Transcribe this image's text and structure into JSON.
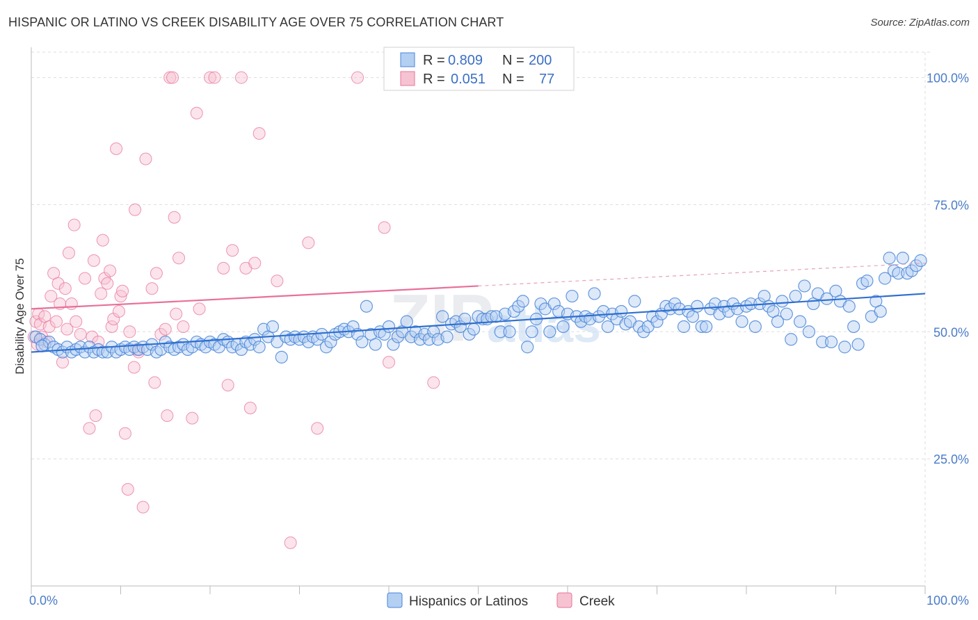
{
  "header": {
    "title": "HISPANIC OR LATINO VS CREEK DISABILITY AGE OVER 75 CORRELATION CHART",
    "source": "Source: ZipAtlas.com"
  },
  "legend_top": {
    "rows": [
      {
        "r_label": "R =",
        "r_value": "0.809",
        "n_label": "N =",
        "n_value": "200",
        "color": "#8fb7ea"
      },
      {
        "r_label": "R =",
        "r_value": "0.051",
        "n_label": "N =",
        "n_value": "77",
        "color": "#f2a9c0"
      }
    ]
  },
  "watermark": {
    "zip": "ZIP",
    "atlas": "atlas"
  },
  "chart_data": {
    "type": "scatter",
    "title": "HISPANIC OR LATINO VS CREEK DISABILITY AGE OVER 75 CORRELATION CHART",
    "xlabel": "",
    "ylabel": "Disability Age Over 75",
    "xlim": [
      0,
      100
    ],
    "ylim": [
      0,
      105
    ],
    "x_tick_labels": [
      "0.0%",
      "100.0%"
    ],
    "y_tick_labels": [
      "25.0%",
      "50.0%",
      "75.0%",
      "100.0%"
    ],
    "y_ticks": [
      25,
      50,
      75,
      100
    ],
    "grid": true,
    "legend_position": "top-center",
    "series": [
      {
        "name": "Hispanics or Latinos",
        "color": "#4a86d8",
        "fill": "#b3cff2",
        "trend": {
          "x": [
            0,
            100
          ],
          "y": [
            46,
            57.5
          ]
        },
        "points": [
          [
            0.5,
            49
          ],
          [
            1,
            48.5
          ],
          [
            1.5,
            47.5
          ],
          [
            2,
            48
          ],
          [
            2.5,
            47
          ],
          [
            3,
            46.5
          ],
          [
            3.5,
            46
          ],
          [
            4,
            47
          ],
          [
            4.5,
            46
          ],
          [
            5,
            46.5
          ],
          [
            5.5,
            47
          ],
          [
            6,
            46
          ],
          [
            6.5,
            47
          ],
          [
            7,
            46
          ],
          [
            7.5,
            46.5
          ],
          [
            8,
            46
          ],
          [
            8.5,
            46
          ],
          [
            9,
            47
          ],
          [
            9.5,
            46
          ],
          [
            10,
            46.5
          ],
          [
            10.5,
            47
          ],
          [
            11,
            46.5
          ],
          [
            11.5,
            47
          ],
          [
            12,
            46.5
          ],
          [
            12.5,
            47
          ],
          [
            13,
            46.5
          ],
          [
            13.5,
            47.5
          ],
          [
            14,
            46
          ],
          [
            14.5,
            46.5
          ],
          [
            15,
            48
          ],
          [
            15.5,
            47
          ],
          [
            16,
            46.5
          ],
          [
            16.5,
            47
          ],
          [
            17,
            47.5
          ],
          [
            17.5,
            46.5
          ],
          [
            18,
            47
          ],
          [
            18.5,
            48
          ],
          [
            19,
            47.5
          ],
          [
            19.5,
            47
          ],
          [
            20,
            48
          ],
          [
            20.5,
            47.5
          ],
          [
            21,
            47
          ],
          [
            21.5,
            48.5
          ],
          [
            22,
            48
          ],
          [
            22.5,
            47
          ],
          [
            23,
            47.5
          ],
          [
            23.5,
            46.5
          ],
          [
            24,
            48
          ],
          [
            24.5,
            47.5
          ],
          [
            25,
            48.5
          ],
          [
            25.5,
            47
          ],
          [
            26,
            50.5
          ],
          [
            26.5,
            49
          ],
          [
            27,
            51
          ],
          [
            27.5,
            48
          ],
          [
            28,
            45
          ],
          [
            28.5,
            49
          ],
          [
            29,
            48.5
          ],
          [
            29.5,
            49
          ],
          [
            30,
            48.5
          ],
          [
            30.5,
            49
          ],
          [
            31,
            48
          ],
          [
            31.5,
            49
          ],
          [
            32,
            48.5
          ],
          [
            32.5,
            49.5
          ],
          [
            33,
            47
          ],
          [
            33.5,
            48
          ],
          [
            34,
            49.5
          ],
          [
            34.5,
            50
          ],
          [
            35,
            50.5
          ],
          [
            35.5,
            50
          ],
          [
            36,
            51
          ],
          [
            36.5,
            49.5
          ],
          [
            37,
            48
          ],
          [
            37.5,
            55
          ],
          [
            38,
            49.5
          ],
          [
            38.5,
            47.5
          ],
          [
            39,
            50
          ],
          [
            39.5,
            49.5
          ],
          [
            40,
            51
          ],
          [
            40.5,
            47.5
          ],
          [
            41,
            49
          ],
          [
            41.5,
            50
          ],
          [
            42,
            52
          ],
          [
            42.5,
            49
          ],
          [
            43,
            50
          ],
          [
            43.5,
            48.5
          ],
          [
            44,
            49.5
          ],
          [
            44.5,
            48.5
          ],
          [
            45,
            50
          ],
          [
            45.5,
            48.5
          ],
          [
            46,
            53
          ],
          [
            46.5,
            49
          ],
          [
            47,
            51.5
          ],
          [
            47.5,
            52
          ],
          [
            48,
            51
          ],
          [
            48.5,
            52.5
          ],
          [
            49,
            49.5
          ],
          [
            49.5,
            50.5
          ],
          [
            50,
            53
          ],
          [
            50.5,
            52.5
          ],
          [
            51,
            52.5
          ],
          [
            51.5,
            53
          ],
          [
            52,
            53
          ],
          [
            52.5,
            50
          ],
          [
            53,
            53.5
          ],
          [
            53.5,
            50
          ],
          [
            54,
            54
          ],
          [
            54.5,
            55
          ],
          [
            55,
            56
          ],
          [
            55.5,
            47
          ],
          [
            56,
            50
          ],
          [
            56.5,
            52.5
          ],
          [
            57,
            55.5
          ],
          [
            57.5,
            54.5
          ],
          [
            58,
            50
          ],
          [
            58.5,
            55.5
          ],
          [
            59,
            54
          ],
          [
            59.5,
            51
          ],
          [
            60,
            53.5
          ],
          [
            60.5,
            57
          ],
          [
            61,
            53
          ],
          [
            61.5,
            52
          ],
          [
            62,
            53
          ],
          [
            62.5,
            52.5
          ],
          [
            63,
            57.5
          ],
          [
            63.5,
            53
          ],
          [
            64,
            54
          ],
          [
            64.5,
            51
          ],
          [
            65,
            53.5
          ],
          [
            65.5,
            52.5
          ],
          [
            66,
            54
          ],
          [
            66.5,
            51.5
          ],
          [
            67,
            52
          ],
          [
            67.5,
            56
          ],
          [
            68,
            51
          ],
          [
            68.5,
            50
          ],
          [
            69,
            51
          ],
          [
            69.5,
            53
          ],
          [
            70,
            52
          ],
          [
            70.5,
            53.5
          ],
          [
            71,
            55
          ],
          [
            71.5,
            54.5
          ],
          [
            72,
            55.5
          ],
          [
            72.5,
            54.5
          ],
          [
            73,
            51
          ],
          [
            73.5,
            54
          ],
          [
            74,
            53
          ],
          [
            74.5,
            55
          ],
          [
            75,
            51
          ],
          [
            75.5,
            51
          ],
          [
            76,
            54.5
          ],
          [
            76.5,
            55.5
          ],
          [
            77,
            53.5
          ],
          [
            77.5,
            55
          ],
          [
            78,
            54
          ],
          [
            78.5,
            55.5
          ],
          [
            79,
            54.5
          ],
          [
            79.5,
            52
          ],
          [
            80,
            55
          ],
          [
            80.5,
            55.5
          ],
          [
            81,
            51
          ],
          [
            81.5,
            55.5
          ],
          [
            82,
            57
          ],
          [
            82.5,
            55
          ],
          [
            83,
            54
          ],
          [
            83.5,
            52
          ],
          [
            84,
            56
          ],
          [
            84.5,
            53.5
          ],
          [
            85,
            48.5
          ],
          [
            85.5,
            57
          ],
          [
            86,
            52
          ],
          [
            86.5,
            59
          ],
          [
            87,
            50
          ],
          [
            87.5,
            55.5
          ],
          [
            88,
            57.5
          ],
          [
            88.5,
            48
          ],
          [
            89,
            56.5
          ],
          [
            89.5,
            48
          ],
          [
            90,
            58
          ],
          [
            90.5,
            56
          ],
          [
            91,
            47
          ],
          [
            91.5,
            55
          ],
          [
            92,
            51
          ],
          [
            92.5,
            47.5
          ],
          [
            93,
            59.5
          ],
          [
            93.5,
            60
          ],
          [
            94,
            53
          ],
          [
            94.5,
            56
          ],
          [
            95,
            54
          ],
          [
            95.5,
            60.5
          ],
          [
            96,
            64.5
          ],
          [
            96.5,
            62
          ],
          [
            97,
            61.5
          ],
          [
            97.5,
            64.5
          ],
          [
            98,
            61.5
          ],
          [
            98.5,
            62
          ],
          [
            99,
            63
          ],
          [
            99.5,
            64
          ],
          [
            1.2,
            47.2
          ]
        ]
      },
      {
        "name": "Creek",
        "color": "#e8739a",
        "fill": "#f6c3d3",
        "trend": {
          "x": [
            0,
            50
          ],
          "y": [
            54.5,
            59
          ]
        },
        "trend_ext": {
          "x": [
            50,
            100
          ],
          "y": [
            59,
            63.5
          ]
        },
        "points": [
          [
            0.3,
            49
          ],
          [
            0.5,
            52
          ],
          [
            0.7,
            47.5
          ],
          [
            0.8,
            53.5
          ],
          [
            1,
            51.5
          ],
          [
            1.2,
            49
          ],
          [
            1.5,
            53
          ],
          [
            1.7,
            48
          ],
          [
            2,
            51
          ],
          [
            2.2,
            57
          ],
          [
            2.5,
            61.5
          ],
          [
            2.8,
            52
          ],
          [
            3,
            59.5
          ],
          [
            3.2,
            55.5
          ],
          [
            3.5,
            44
          ],
          [
            3.8,
            58.5
          ],
          [
            4,
            50.5
          ],
          [
            4.2,
            65.5
          ],
          [
            4.5,
            55.5
          ],
          [
            4.8,
            71
          ],
          [
            5,
            52
          ],
          [
            5.5,
            49.5
          ],
          [
            6,
            60.5
          ],
          [
            6.5,
            31
          ],
          [
            6.8,
            49
          ],
          [
            7,
            64
          ],
          [
            7.2,
            33.5
          ],
          [
            7.5,
            48
          ],
          [
            7.8,
            57.5
          ],
          [
            8,
            68
          ],
          [
            8.2,
            60.5
          ],
          [
            8.5,
            59.5
          ],
          [
            8.8,
            62
          ],
          [
            9,
            51
          ],
          [
            9.2,
            52.5
          ],
          [
            9.5,
            86
          ],
          [
            9.8,
            54
          ],
          [
            10,
            57
          ],
          [
            10.2,
            58
          ],
          [
            10.5,
            30
          ],
          [
            10.8,
            19
          ],
          [
            11,
            50
          ],
          [
            11.5,
            43
          ],
          [
            11.6,
            74
          ],
          [
            11.8,
            46.5
          ],
          [
            12,
            46
          ],
          [
            12.5,
            15.5
          ],
          [
            12.8,
            84
          ],
          [
            13.5,
            58.5
          ],
          [
            13.8,
            40
          ],
          [
            14,
            61.5
          ],
          [
            14.5,
            49.5
          ],
          [
            15,
            50.5
          ],
          [
            15.2,
            33.5
          ],
          [
            15.5,
            100
          ],
          [
            15.8,
            100
          ],
          [
            16,
            72.5
          ],
          [
            16.2,
            53.5
          ],
          [
            16.5,
            64.5
          ],
          [
            17,
            51
          ],
          [
            18,
            33
          ],
          [
            18.5,
            93
          ],
          [
            18.8,
            54.5
          ],
          [
            20,
            100
          ],
          [
            20.5,
            100
          ],
          [
            21.5,
            62.5
          ],
          [
            22,
            39.5
          ],
          [
            22.5,
            66
          ],
          [
            23.5,
            100
          ],
          [
            24,
            62.5
          ],
          [
            24.5,
            35
          ],
          [
            25,
            63.5
          ],
          [
            25.5,
            89
          ],
          [
            27.5,
            60
          ],
          [
            29,
            8.5
          ],
          [
            31,
            67.5
          ],
          [
            32,
            31
          ]
        ]
      }
    ],
    "extra_creek_points": [
      [
        36.5,
        100
      ],
      [
        39.5,
        70.5
      ],
      [
        40,
        44
      ],
      [
        45,
        40
      ]
    ]
  },
  "bottom_legend": {
    "items": [
      {
        "label": "Hispanics or Latinos",
        "color": "#b3cff2",
        "stroke": "#4a86d8"
      },
      {
        "label": "Creek",
        "color": "#f6c3d3",
        "stroke": "#e8739a"
      }
    ]
  },
  "axis": {
    "x_left": "0.0%",
    "x_right": "100.0%",
    "ylabel": "Disability Age Over 75"
  }
}
